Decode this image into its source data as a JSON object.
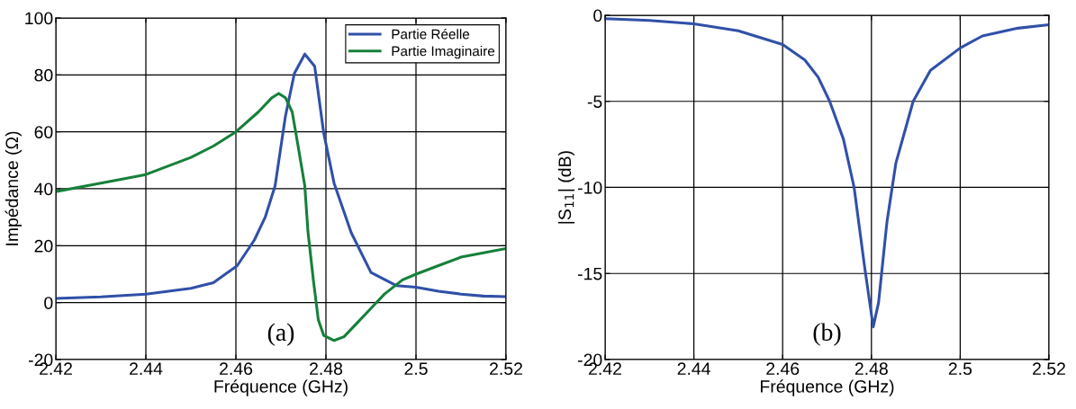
{
  "chart_data": [
    {
      "type": "line",
      "xlabel": "Fréquence (GHz)",
      "ylabel": "Impédance (Ω)",
      "annotations": [
        "(a)"
      ],
      "xlim": [
        2.42,
        2.52
      ],
      "xticks": [
        2.42,
        2.44,
        2.46,
        2.48,
        2.5,
        2.52
      ],
      "ylim": [
        -20,
        100
      ],
      "yticks": [
        -20,
        0,
        20,
        40,
        60,
        80,
        100
      ],
      "grid": true,
      "legend": "top right",
      "marker": "none",
      "line_style": "solid",
      "series": [
        {
          "name": "Partie Réelle",
          "color": "#3050a8",
          "x": [
            2.42,
            2.43,
            2.44,
            2.45,
            2.455,
            2.4603,
            2.4641,
            2.4665,
            2.4687,
            2.471,
            2.473,
            2.4753,
            2.4775,
            2.4795,
            2.4818,
            2.4856,
            2.49,
            2.4956,
            2.5,
            2.505,
            2.51,
            2.515,
            2.52
          ],
          "values": [
            1.5,
            2,
            3,
            5,
            7,
            13,
            22,
            30,
            41,
            65.5,
            80.6,
            87.3,
            83,
            59.6,
            42,
            24.6,
            10.6,
            6,
            5.4,
            4,
            3,
            2.3,
            2.1
          ]
        },
        {
          "name": "Partie Imaginaire",
          "color": "#16803a",
          "x": [
            2.42,
            2.43,
            2.44,
            2.45,
            2.455,
            2.46,
            2.465,
            2.468,
            2.4695,
            2.471,
            2.4725,
            2.4737,
            2.4753,
            2.476,
            2.4772,
            2.4783,
            2.4795,
            2.4818,
            2.484,
            2.487,
            2.49,
            2.493,
            2.497,
            2.5,
            2.505,
            2.51,
            2.515,
            2.52
          ],
          "values": [
            39,
            42,
            45,
            51,
            55,
            60,
            67,
            72,
            73.5,
            72,
            67,
            56,
            41,
            25,
            8,
            -6,
            -11.5,
            -13.3,
            -12,
            -7,
            -2,
            3,
            8,
            10,
            13,
            16,
            17.5,
            19
          ]
        }
      ]
    },
    {
      "type": "line",
      "xlabel": "Fréquence (GHz)",
      "ylabel": "|S$_{11}$| (dB)",
      "annotations": [
        "(b)"
      ],
      "xlim": [
        2.42,
        2.52
      ],
      "xticks": [
        2.42,
        2.44,
        2.46,
        2.48,
        2.5,
        2.52
      ],
      "ylim": [
        -20,
        0
      ],
      "yticks": [
        -20,
        -15,
        -10,
        -5,
        0
      ],
      "grid": true,
      "marker": "none",
      "line_style": "solid",
      "series": [
        {
          "color": "#3050a8",
          "x": [
            2.42,
            2.43,
            2.44,
            2.45,
            2.46,
            2.465,
            2.468,
            2.4706,
            2.4737,
            2.4761,
            2.4784,
            2.4804,
            2.4816,
            2.4835,
            2.4855,
            2.4894,
            2.4933,
            2.5,
            2.505,
            2.513,
            2.52
          ],
          "values": [
            -0.2,
            -0.3,
            -0.5,
            -0.9,
            -1.7,
            -2.6,
            -3.6,
            -5.0,
            -7.2,
            -10,
            -14.5,
            -18.1,
            -16.7,
            -12,
            -8.6,
            -5,
            -3.2,
            -1.9,
            -1.2,
            -0.75,
            -0.55
          ]
        }
      ]
    }
  ]
}
